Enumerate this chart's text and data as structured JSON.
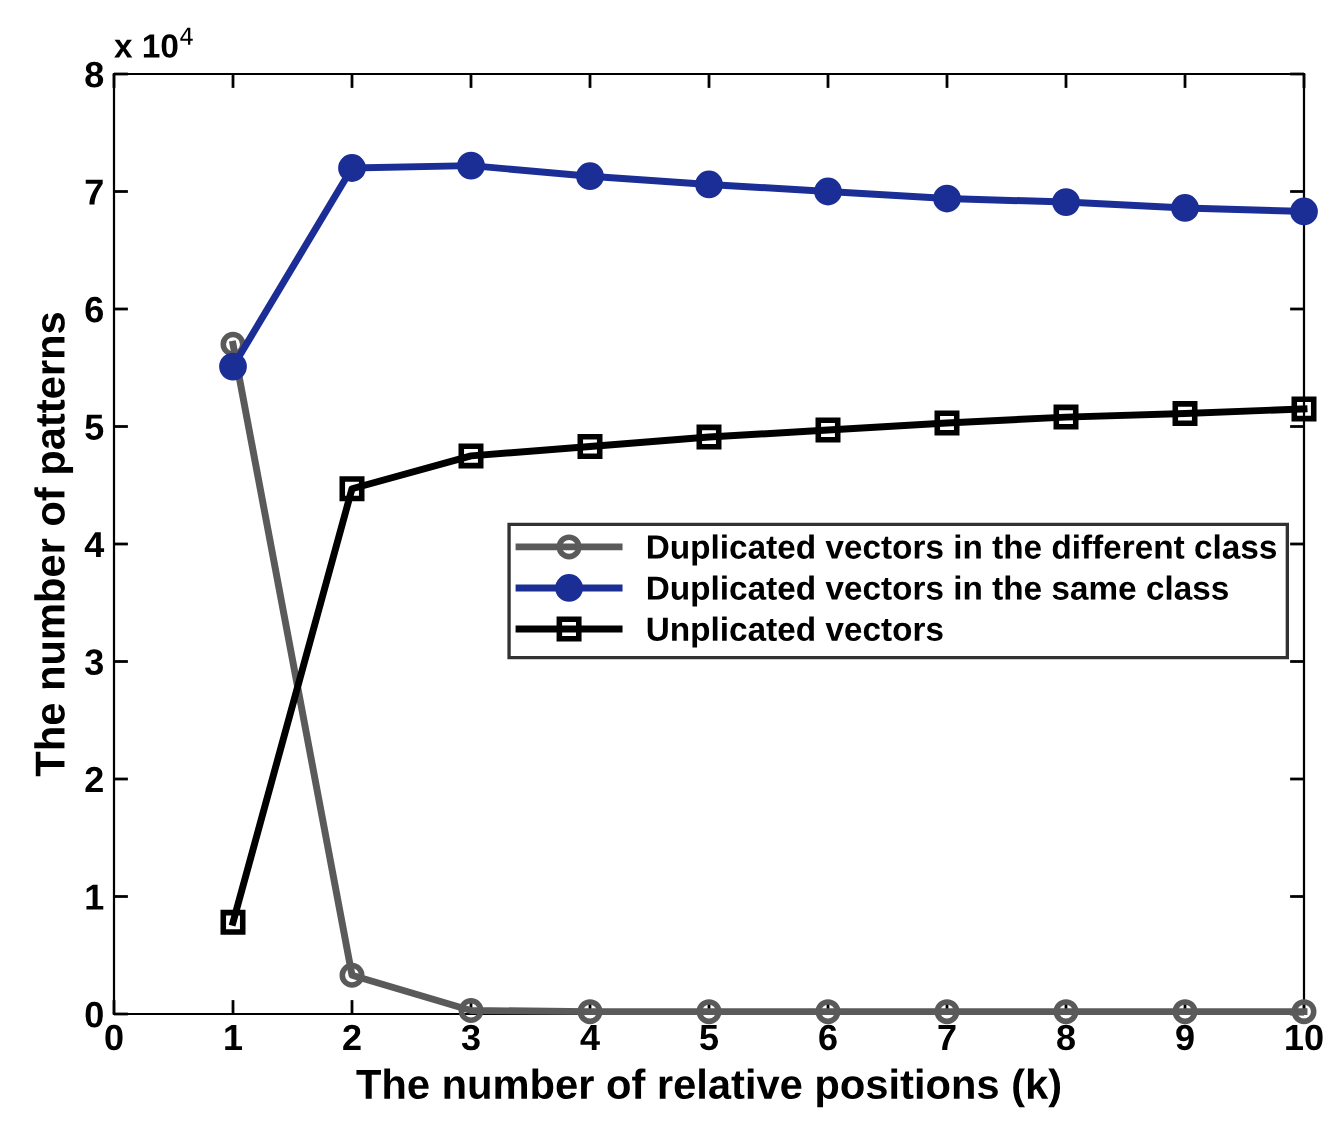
{
  "chart_data": {
    "type": "line",
    "xlabel": "The number of relative positions (k)",
    "ylabel": "The number of patterns",
    "annotations": [
      "x 10$^{4}$"
    ],
    "x": [
      1,
      2,
      3,
      4,
      5,
      6,
      7,
      8,
      9,
      10
    ],
    "series": [
      {
        "name": "Duplicated vectors in the different class",
        "color": "#5a5a5a",
        "marker": "circle",
        "values": [
          5.7,
          0.33,
          0.03,
          0.02,
          0.02,
          0.02,
          0.02,
          0.02,
          0.02,
          0.02
        ]
      },
      {
        "name": "Duplicated vectors in the same class",
        "color": "#1a2e96",
        "marker": "filled circle",
        "values": [
          5.51,
          7.2,
          7.22,
          7.13,
          7.06,
          7.0,
          6.94,
          6.91,
          6.86,
          6.83
        ]
      },
      {
        "name": "Unplicated vectors",
        "color": "#000000",
        "marker": "square",
        "values": [
          0.78,
          4.47,
          4.75,
          4.83,
          4.91,
          4.97,
          5.03,
          5.08,
          5.11,
          5.15
        ]
      }
    ],
    "xlim": [
      0,
      10
    ],
    "ylim": [
      0,
      8
    ],
    "xticks": [
      0,
      1,
      2,
      3,
      4,
      5,
      6,
      7,
      8,
      9,
      10
    ],
    "yticks": [
      0,
      1,
      2,
      3,
      4,
      5,
      6,
      7,
      8
    ],
    "grid": false,
    "legend": "right",
    "line_style": "solid"
  }
}
